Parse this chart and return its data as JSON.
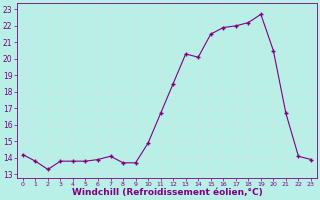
{
  "x": [
    0,
    1,
    2,
    3,
    4,
    5,
    6,
    7,
    8,
    9,
    10,
    11,
    12,
    13,
    14,
    15,
    16,
    17,
    18,
    19,
    20,
    21,
    22,
    23
  ],
  "y": [
    14.2,
    13.8,
    13.3,
    13.8,
    13.8,
    13.8,
    13.9,
    14.1,
    13.7,
    13.7,
    14.9,
    16.7,
    18.5,
    20.3,
    20.1,
    21.5,
    21.9,
    22.0,
    22.2,
    22.7,
    20.5,
    16.7,
    14.1,
    13.9
  ],
  "line_color": "#800080",
  "marker": "+",
  "markersize": 3,
  "linewidth": 0.8,
  "xlabel": "Windchill (Refroidissement éolien,°C)",
  "xlabel_fontsize": 6.5,
  "yticks": [
    13,
    14,
    15,
    16,
    17,
    18,
    19,
    20,
    21,
    22,
    23
  ],
  "xticks": [
    0,
    1,
    2,
    3,
    4,
    5,
    6,
    7,
    8,
    9,
    10,
    11,
    12,
    13,
    14,
    15,
    16,
    17,
    18,
    19,
    20,
    21,
    22,
    23
  ],
  "ylim": [
    12.8,
    23.4
  ],
  "xlim": [
    -0.5,
    23.5
  ],
  "bg_color": "#b8f0e8",
  "grid_color": "#c8e8e0",
  "tick_color": "#800080",
  "label_color": "#800080"
}
